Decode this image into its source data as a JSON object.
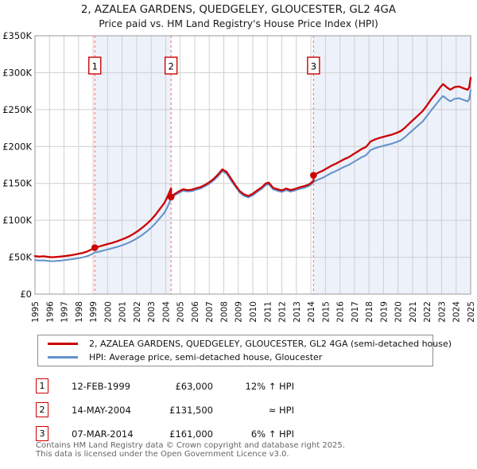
{
  "title": "2, AZALEA GARDENS, QUEDGELEY, GLOUCESTER, GL2 4GA",
  "subtitle": "Price paid vs. HM Land Registry's House Price Index (HPI)",
  "colors": {
    "price_line": "#cc0000",
    "hpi_line": "#6191c9",
    "sale_dashed": "#f28080",
    "band": "#edf1fa",
    "grid": "#cfcfcf",
    "frame": "#9a9a9a",
    "marker_box_border": "#cc0000",
    "marker_box_fill": "#ffffff",
    "text": "#111111",
    "footer_text": "#666666"
  },
  "chart_data": {
    "type": "line",
    "title": "2, AZALEA GARDENS, QUEDGELEY, GLOUCESTER, GL2 4GA",
    "xlabel": "",
    "ylabel": "Price (GBP)",
    "x_range": [
      1995,
      2025
    ],
    "x_tick_interval": 1,
    "ylim": [
      0,
      350000
    ],
    "grid": true,
    "legend_position": "bottom",
    "y_ticks": [
      {
        "v": 0,
        "label": "£0"
      },
      {
        "v": 50000,
        "label": "£50K"
      },
      {
        "v": 100000,
        "label": "£100K"
      },
      {
        "v": 150000,
        "label": "£150K"
      },
      {
        "v": 200000,
        "label": "£200K"
      },
      {
        "v": 250000,
        "label": "£250K"
      },
      {
        "v": 300000,
        "label": "£300K"
      },
      {
        "v": 350000,
        "label": "£350K"
      }
    ],
    "bands": [
      {
        "from": 1999.12,
        "to": 2004.37
      },
      {
        "from": 2014.18,
        "to": 2025.0
      }
    ],
    "sales": [
      {
        "label": "1",
        "year": 1999.12,
        "price": 63000
      },
      {
        "label": "2",
        "year": 2004.37,
        "price": 131500
      },
      {
        "label": "3",
        "year": 2014.18,
        "price": 161000
      }
    ],
    "series": [
      {
        "name": "2, AZALEA GARDENS, QUEDGELEY, GLOUCESTER, GL2 4GA (semi-detached house)",
        "color": "#cc0000",
        "points": [
          [
            1995.0,
            51500
          ],
          [
            1995.3,
            50800
          ],
          [
            1995.6,
            51300
          ],
          [
            1995.9,
            50400
          ],
          [
            1996.2,
            50000
          ],
          [
            1996.5,
            50400
          ],
          [
            1996.8,
            50900
          ],
          [
            1997.1,
            51700
          ],
          [
            1997.4,
            52500
          ],
          [
            1997.7,
            53400
          ],
          [
            1998.0,
            54600
          ],
          [
            1998.3,
            55900
          ],
          [
            1998.6,
            57700
          ],
          [
            1998.9,
            60500
          ],
          [
            1999.12,
            63000
          ],
          [
            1999.4,
            64400
          ],
          [
            1999.7,
            66100
          ],
          [
            2000.0,
            67800
          ],
          [
            2000.3,
            69400
          ],
          [
            2000.6,
            71200
          ],
          [
            2000.9,
            73400
          ],
          [
            2001.2,
            75700
          ],
          [
            2001.5,
            78400
          ],
          [
            2001.8,
            81800
          ],
          [
            2002.1,
            85700
          ],
          [
            2002.4,
            90200
          ],
          [
            2002.7,
            95200
          ],
          [
            2003.0,
            100800
          ],
          [
            2003.3,
            107500
          ],
          [
            2003.6,
            115400
          ],
          [
            2003.9,
            123200
          ],
          [
            2004.1,
            131000
          ],
          [
            2004.37,
            143400
          ],
          [
            2004.37,
            131500
          ],
          [
            2004.6,
            135500
          ],
          [
            2004.9,
            139000
          ],
          [
            2005.2,
            142000
          ],
          [
            2005.5,
            141000
          ],
          [
            2005.8,
            141500
          ],
          [
            2006.1,
            143500
          ],
          [
            2006.4,
            145000
          ],
          [
            2006.7,
            148000
          ],
          [
            2007.0,
            151500
          ],
          [
            2007.3,
            156000
          ],
          [
            2007.6,
            162000
          ],
          [
            2007.9,
            169000
          ],
          [
            2008.2,
            165500
          ],
          [
            2008.5,
            156500
          ],
          [
            2008.8,
            147500
          ],
          [
            2009.1,
            139500
          ],
          [
            2009.4,
            135000
          ],
          [
            2009.7,
            133000
          ],
          [
            2010.0,
            136000
          ],
          [
            2010.3,
            140500
          ],
          [
            2010.6,
            144500
          ],
          [
            2010.9,
            150000
          ],
          [
            2011.1,
            151000
          ],
          [
            2011.4,
            144000
          ],
          [
            2011.7,
            142000
          ],
          [
            2012.0,
            140500
          ],
          [
            2012.3,
            143000
          ],
          [
            2012.6,
            141000
          ],
          [
            2012.9,
            142500
          ],
          [
            2013.2,
            144500
          ],
          [
            2013.5,
            146000
          ],
          [
            2013.8,
            148000
          ],
          [
            2014.0,
            150500
          ],
          [
            2014.18,
            153500
          ],
          [
            2014.18,
            161000
          ],
          [
            2014.5,
            164500
          ],
          [
            2014.8,
            167000
          ],
          [
            2015.1,
            170500
          ],
          [
            2015.4,
            173800
          ],
          [
            2015.7,
            176500
          ],
          [
            2016.0,
            179700
          ],
          [
            2016.3,
            182900
          ],
          [
            2016.6,
            185500
          ],
          [
            2016.9,
            189200
          ],
          [
            2017.2,
            192900
          ],
          [
            2017.5,
            196600
          ],
          [
            2017.8,
            199500
          ],
          [
            2018.1,
            206700
          ],
          [
            2018.4,
            209400
          ],
          [
            2018.7,
            211500
          ],
          [
            2019.0,
            213100
          ],
          [
            2019.3,
            214700
          ],
          [
            2019.6,
            216200
          ],
          [
            2019.9,
            218400
          ],
          [
            2020.2,
            221000
          ],
          [
            2020.5,
            225800
          ],
          [
            2020.8,
            231600
          ],
          [
            2021.1,
            237000
          ],
          [
            2021.4,
            242500
          ],
          [
            2021.7,
            248000
          ],
          [
            2022.0,
            256000
          ],
          [
            2022.3,
            264500
          ],
          [
            2022.6,
            272000
          ],
          [
            2022.9,
            280000
          ],
          [
            2023.1,
            284500
          ],
          [
            2023.4,
            279500
          ],
          [
            2023.6,
            277000
          ],
          [
            2023.9,
            280500
          ],
          [
            2024.2,
            281300
          ],
          [
            2024.5,
            278900
          ],
          [
            2024.8,
            276900
          ],
          [
            2024.9,
            280000
          ],
          [
            2025.0,
            293000
          ]
        ]
      },
      {
        "name": "HPI: Average price, semi-detached house, Gloucester",
        "color": "#6191c9",
        "points": [
          [
            1995.0,
            46000
          ],
          [
            1995.3,
            45400
          ],
          [
            1995.6,
            45800
          ],
          [
            1995.9,
            45000
          ],
          [
            1996.2,
            44600
          ],
          [
            1996.5,
            45000
          ],
          [
            1996.8,
            45400
          ],
          [
            1997.1,
            46200
          ],
          [
            1997.4,
            46900
          ],
          [
            1997.7,
            47700
          ],
          [
            1998.0,
            48700
          ],
          [
            1998.3,
            49900
          ],
          [
            1998.6,
            51500
          ],
          [
            1998.9,
            54000
          ],
          [
            1999.12,
            56300
          ],
          [
            1999.4,
            57500
          ],
          [
            1999.7,
            59000
          ],
          [
            2000.0,
            60500
          ],
          [
            2000.3,
            62000
          ],
          [
            2000.6,
            63600
          ],
          [
            2000.9,
            65500
          ],
          [
            2001.2,
            67600
          ],
          [
            2001.5,
            70000
          ],
          [
            2001.8,
            73000
          ],
          [
            2002.1,
            76500
          ],
          [
            2002.4,
            80500
          ],
          [
            2002.7,
            85000
          ],
          [
            2003.0,
            90000
          ],
          [
            2003.3,
            96000
          ],
          [
            2003.6,
            103000
          ],
          [
            2003.9,
            110000
          ],
          [
            2004.1,
            117000
          ],
          [
            2004.37,
            129500
          ],
          [
            2004.6,
            133500
          ],
          [
            2004.9,
            137000
          ],
          [
            2005.2,
            140000
          ],
          [
            2005.5,
            139000
          ],
          [
            2005.8,
            139500
          ],
          [
            2006.1,
            141500
          ],
          [
            2006.4,
            143000
          ],
          [
            2006.7,
            146000
          ],
          [
            2007.0,
            149500
          ],
          [
            2007.3,
            154000
          ],
          [
            2007.6,
            159500
          ],
          [
            2007.9,
            166500
          ],
          [
            2008.2,
            163000
          ],
          [
            2008.5,
            154000
          ],
          [
            2008.8,
            145500
          ],
          [
            2009.1,
            137500
          ],
          [
            2009.4,
            133000
          ],
          [
            2009.7,
            131000
          ],
          [
            2010.0,
            134000
          ],
          [
            2010.3,
            138500
          ],
          [
            2010.6,
            142500
          ],
          [
            2010.9,
            147800
          ],
          [
            2011.1,
            148800
          ],
          [
            2011.4,
            141900
          ],
          [
            2011.7,
            139900
          ],
          [
            2012.0,
            138400
          ],
          [
            2012.3,
            140900
          ],
          [
            2012.6,
            138900
          ],
          [
            2012.9,
            140400
          ],
          [
            2013.2,
            142400
          ],
          [
            2013.5,
            143800
          ],
          [
            2013.8,
            145800
          ],
          [
            2014.0,
            148300
          ],
          [
            2014.18,
            151900
          ],
          [
            2014.5,
            155200
          ],
          [
            2014.8,
            157500
          ],
          [
            2015.1,
            160800
          ],
          [
            2015.4,
            164000
          ],
          [
            2015.7,
            166500
          ],
          [
            2016.0,
            169500
          ],
          [
            2016.3,
            172500
          ],
          [
            2016.6,
            175000
          ],
          [
            2016.9,
            178500
          ],
          [
            2017.2,
            182000
          ],
          [
            2017.5,
            185500
          ],
          [
            2017.8,
            188200
          ],
          [
            2018.1,
            195000
          ],
          [
            2018.4,
            197500
          ],
          [
            2018.7,
            199500
          ],
          [
            2019.0,
            201000
          ],
          [
            2019.3,
            202500
          ],
          [
            2019.6,
            204000
          ],
          [
            2019.9,
            206000
          ],
          [
            2020.2,
            208500
          ],
          [
            2020.5,
            213000
          ],
          [
            2020.8,
            218500
          ],
          [
            2021.1,
            223600
          ],
          [
            2021.4,
            228800
          ],
          [
            2021.7,
            234000
          ],
          [
            2022.0,
            241500
          ],
          [
            2022.3,
            249500
          ],
          [
            2022.6,
            256600
          ],
          [
            2022.9,
            264200
          ],
          [
            2023.1,
            268400
          ],
          [
            2023.4,
            263700
          ],
          [
            2023.6,
            261300
          ],
          [
            2023.9,
            264600
          ],
          [
            2024.2,
            265400
          ],
          [
            2024.5,
            263100
          ],
          [
            2024.8,
            261200
          ],
          [
            2024.9,
            264200
          ],
          [
            2025.0,
            276400
          ]
        ]
      }
    ]
  },
  "legend": [
    {
      "label": "2, AZALEA GARDENS, QUEDGELEY, GLOUCESTER, GL2 4GA (semi-detached house)",
      "color": "#cc0000"
    },
    {
      "label": "HPI: Average price, semi-detached house, Gloucester",
      "color": "#6191c9"
    }
  ],
  "transactions": [
    {
      "num": "1",
      "date": "12-FEB-1999",
      "price": "£63,000",
      "hpi": "12% ↑ HPI"
    },
    {
      "num": "2",
      "date": "14-MAY-2004",
      "price": "£131,500",
      "hpi": "≈ HPI"
    },
    {
      "num": "3",
      "date": "07-MAR-2014",
      "price": "£161,000",
      "hpi": "6% ↑ HPI"
    }
  ],
  "footer": {
    "line1": "Contains HM Land Registry data © Crown copyright and database right 2025.",
    "line2": "This data is licensed under the Open Government Licence v3.0."
  }
}
